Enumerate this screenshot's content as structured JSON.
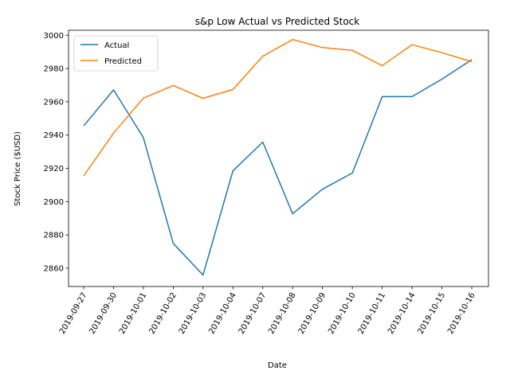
{
  "chart_data": {
    "type": "line",
    "title": "s&p Low Actual vs Predicted Stock",
    "xlabel": "Date",
    "ylabel": "Stock Price ($USD)",
    "ylim": [
      2849,
      3003
    ],
    "yticks": [
      2860,
      2880,
      2900,
      2920,
      2940,
      2960,
      2980,
      3000
    ],
    "grid": false,
    "legend_position": "top-left",
    "x": [
      "2019-09-27",
      "2019-09-30",
      "2019-10-01",
      "2019-10-02",
      "2019-10-03",
      "2019-10-04",
      "2019-10-07",
      "2019-10-08",
      "2019-10-09",
      "2019-10-10",
      "2019-10-11",
      "2019-10-14",
      "2019-10-15",
      "2019-10-16"
    ],
    "series": [
      {
        "name": "Actual",
        "color": "#1f77b4",
        "values": [
          2945.5,
          2967.2,
          2938.5,
          2874.9,
          2855.9,
          2918.5,
          2935.8,
          2892.7,
          2907.5,
          2917.2,
          2963.1,
          2963.1,
          2973.6,
          2985.3
        ]
      },
      {
        "name": "Predicted",
        "color": "#ff7f0e",
        "values": [
          2915.5,
          2941.2,
          2962.2,
          2969.8,
          2962.1,
          2967.4,
          2987.4,
          2997.4,
          2992.6,
          2990.9,
          2981.7,
          2994.3,
          2989.5,
          2984.1
        ]
      }
    ]
  }
}
